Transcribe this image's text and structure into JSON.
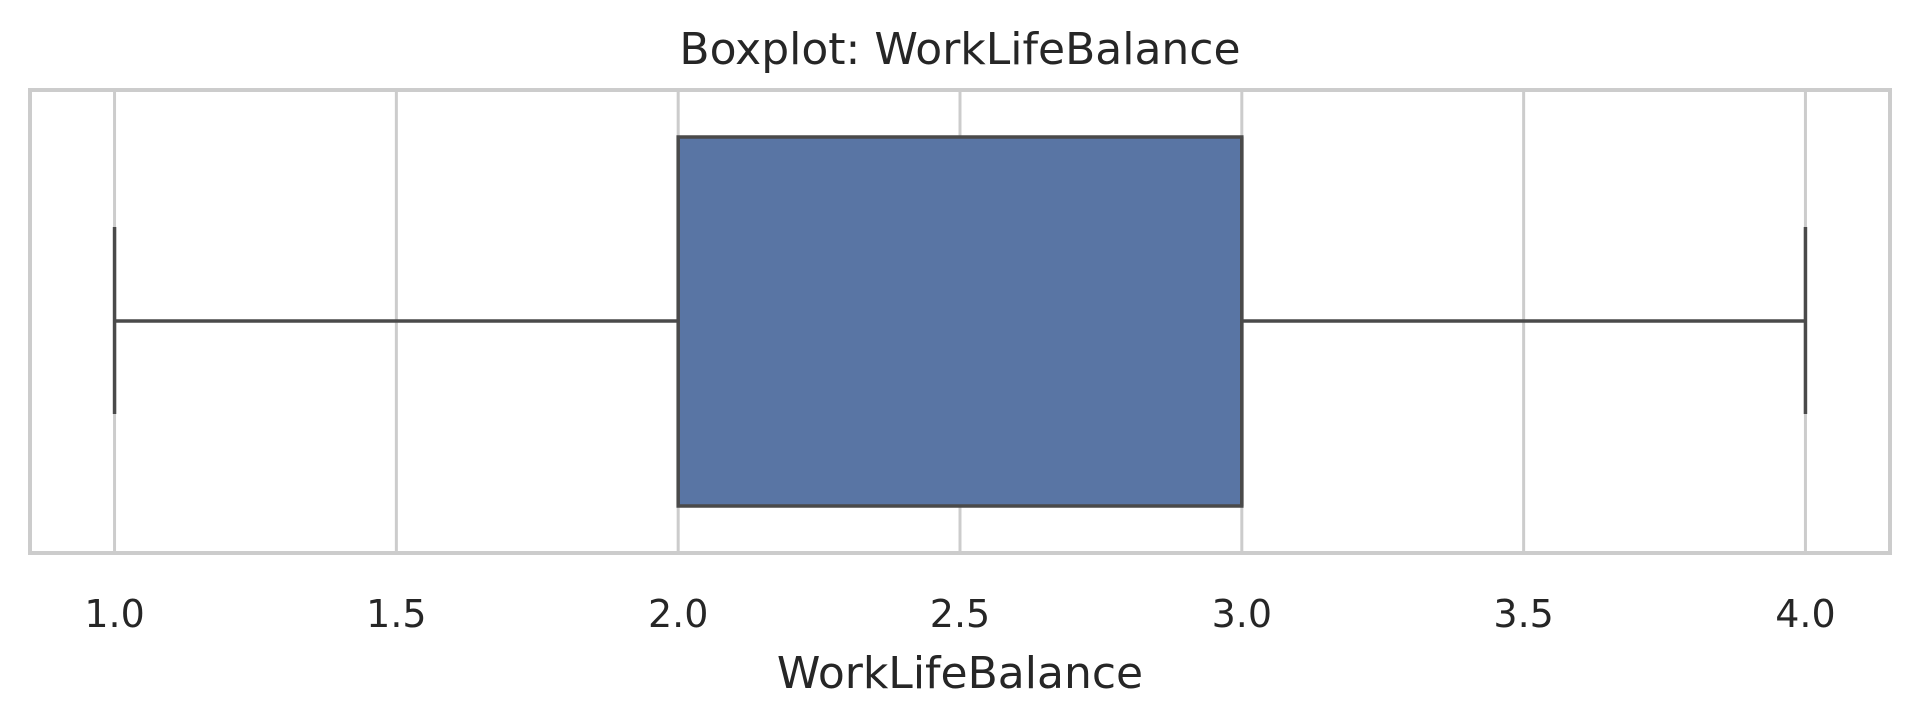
{
  "chart_data": {
    "type": "box",
    "title": "Boxplot: WorkLifeBalance",
    "xlabel": "WorkLifeBalance",
    "ylabel": "",
    "xlim": [
      0.85,
      4.15
    ],
    "xticks": [
      1.0,
      1.5,
      2.0,
      2.5,
      3.0,
      3.5,
      4.0
    ],
    "xtick_labels": [
      "1.0",
      "1.5",
      "2.0",
      "2.5",
      "3.0",
      "3.5",
      "4.0"
    ],
    "grid": true,
    "orientation": "horizontal",
    "series": [
      {
        "variable": "WorkLifeBalance",
        "min": 1.0,
        "q1": 2.0,
        "median": 3.0,
        "q3": 3.0,
        "max": 4.0,
        "color": "#5975a4"
      }
    ]
  }
}
